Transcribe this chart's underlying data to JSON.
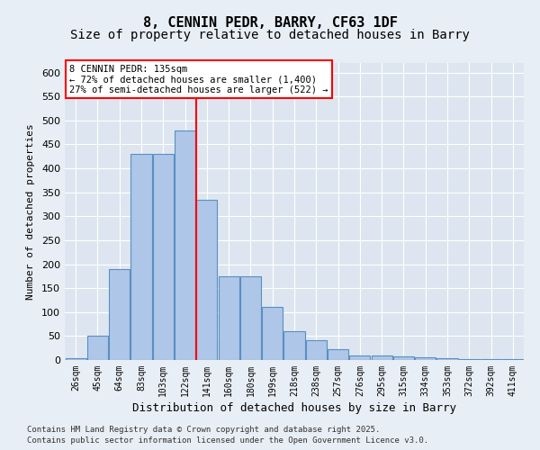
{
  "title1": "8, CENNIN PEDR, BARRY, CF63 1DF",
  "title2": "Size of property relative to detached houses in Barry",
  "xlabel": "Distribution of detached houses by size in Barry",
  "ylabel": "Number of detached properties",
  "categories": [
    "26sqm",
    "45sqm",
    "64sqm",
    "83sqm",
    "103sqm",
    "122sqm",
    "141sqm",
    "160sqm",
    "180sqm",
    "199sqm",
    "218sqm",
    "238sqm",
    "257sqm",
    "276sqm",
    "295sqm",
    "315sqm",
    "334sqm",
    "353sqm",
    "372sqm",
    "392sqm",
    "411sqm"
  ],
  "bar_heights": [
    3,
    50,
    190,
    430,
    430,
    480,
    335,
    175,
    175,
    110,
    60,
    42,
    22,
    10,
    10,
    7,
    5,
    3,
    2,
    2,
    2
  ],
  "bar_color": "#aec6e8",
  "bar_edge_color": "#5a8fc0",
  "vline_color": "red",
  "ylim": [
    0,
    620
  ],
  "yticks": [
    0,
    50,
    100,
    150,
    200,
    250,
    300,
    350,
    400,
    450,
    500,
    550,
    600
  ],
  "annotation_title": "8 CENNIN PEDR: 135sqm",
  "annotation_line1": "← 72% of detached houses are smaller (1,400)",
  "annotation_line2": "27% of semi-detached houses are larger (522) →",
  "footer1": "Contains HM Land Registry data © Crown copyright and database right 2025.",
  "footer2": "Contains public sector information licensed under the Open Government Licence v3.0.",
  "bg_color": "#e8eef5",
  "plot_bg_color": "#dde6f0"
}
